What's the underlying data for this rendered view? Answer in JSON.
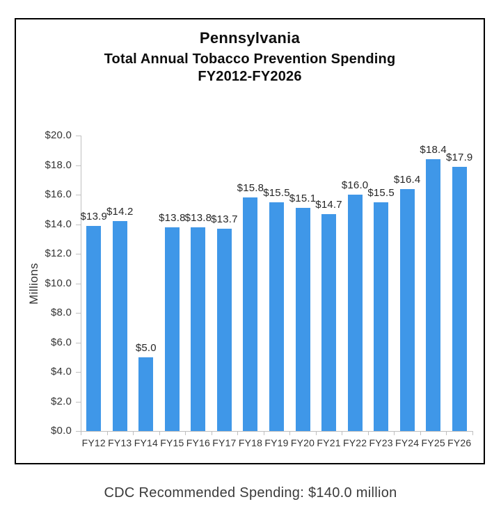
{
  "header": {
    "title_line1": "Pennsylvania",
    "title_line2": "Total Annual Tobacco Prevention Spending",
    "title_line3": "FY2012-FY2026"
  },
  "footer": {
    "text": "CDC Recommended Spending: $140.0 million"
  },
  "chart_data": {
    "type": "bar",
    "title": "Pennsylvania — Total Annual Tobacco Prevention Spending FY2012-FY2026",
    "categories": [
      "FY12",
      "FY13",
      "FY14",
      "FY15",
      "FY16",
      "FY17",
      "FY18",
      "FY19",
      "FY20",
      "FY21",
      "FY22",
      "FY23",
      "FY24",
      "FY25",
      "FY26"
    ],
    "values": [
      13.9,
      14.2,
      5.0,
      13.8,
      13.8,
      13.7,
      15.8,
      15.5,
      15.1,
      14.7,
      16.0,
      15.5,
      16.4,
      18.4,
      17.9
    ],
    "value_labels": [
      "$13.9",
      "$14.2",
      "$5.0",
      "$13.8",
      "$13.8",
      "$13.7",
      "$15.8",
      "$15.5",
      "$15.1",
      "$14.7",
      "$16.0",
      "$15.5",
      "$16.4",
      "$18.4",
      "$17.9"
    ],
    "xlabel": "",
    "ylabel": "Millions",
    "ylim": [
      0,
      20
    ],
    "ytick_step": 2,
    "ytick_labels": [
      "$20.0",
      "$18.0",
      "$16.0",
      "$14.0",
      "$12.0",
      "$10.0",
      "$8.0",
      "$6.0",
      "$4.0",
      "$2.0",
      "$0.0"
    ],
    "bar_color": "#3F97E8",
    "axis_color": "#BFBFBF",
    "text_color": "#333333",
    "grid": false,
    "legend": null
  }
}
